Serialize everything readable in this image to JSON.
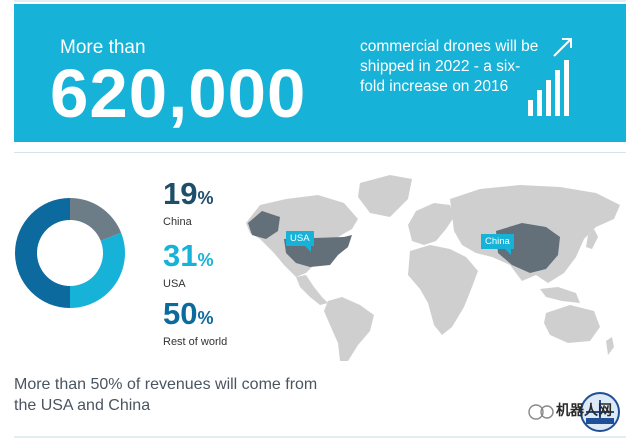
{
  "header": {
    "prefix": "More than",
    "big_number": "620,000",
    "description": "commercial drones will be shipped in 2022 - a six-fold increase on 2016",
    "growth_icon": "bar-chart-arrow-up-icon"
  },
  "stats": [
    {
      "value": "19",
      "sign": "%",
      "label": "China"
    },
    {
      "value": "31",
      "sign": "%",
      "label": "USA"
    },
    {
      "value": "50",
      "sign": "%",
      "label": "Rest of world"
    }
  ],
  "chart_data": {
    "type": "pie",
    "categories": [
      "China",
      "USA",
      "Rest of world"
    ],
    "values": [
      19,
      31,
      50
    ],
    "colors": [
      "#6d7d88",
      "#16b2d8",
      "#0d6a9f"
    ]
  },
  "map": {
    "labels": {
      "usa": "USA",
      "china": "China"
    },
    "colors": {
      "land": "#cfcfcf",
      "highlight": "#636f79"
    }
  },
  "footer": {
    "caption": "More than 50% of revenues will come from the USA and China"
  },
  "watermark": {
    "text": "机器人网",
    "logo": "drone-association-seal"
  }
}
